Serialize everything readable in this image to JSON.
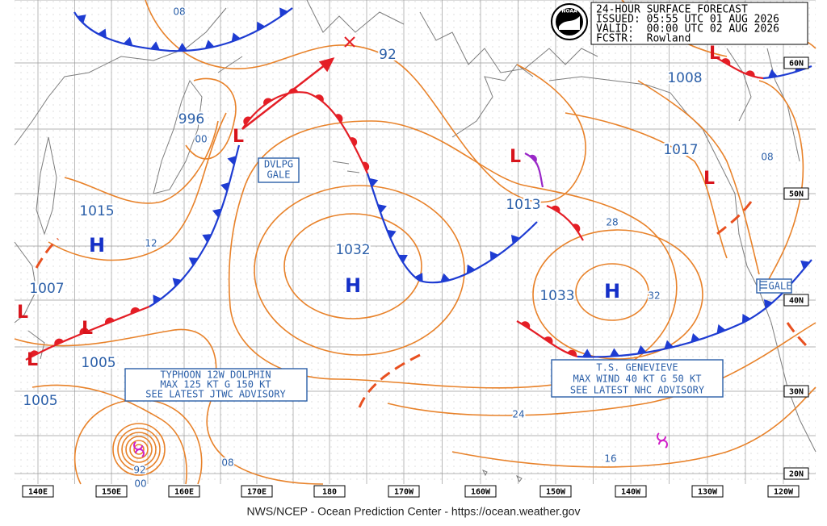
{
  "header": {
    "lines": [
      "24-HOUR SURFACE FORECAST",
      "ISSUED: 05:55 UTC 01 AUG 2026",
      "VALID:  00:00 UTC 02 AUG 2026",
      "FCSTR:  Rowland"
    ],
    "logo": "NOAA"
  },
  "pressure_labels": [
    "08",
    "92",
    "996",
    "00",
    "1008",
    "1017",
    "08",
    "1015",
    "12",
    "1032",
    "1013",
    "28",
    "1007",
    "1033",
    "32",
    "1005",
    "1005",
    "24",
    "92",
    "00",
    "08",
    "16"
  ],
  "symbols": {
    "high": "H",
    "low": "L"
  },
  "advisories": {
    "developing_gale": [
      "DVLPG",
      "GALE"
    ],
    "typhoon": [
      "TYPHOON 12W DOLPHIN",
      "MAX 125 KT G 150 KT",
      "SEE LATEST JTWC ADVISORY"
    ],
    "tropical_storm": [
      "T.S. GENEVIEVE",
      "MAX WIND 40 KT G 50 KT",
      "SEE LATEST NHC ADVISORY"
    ],
    "gale": "GALE"
  },
  "latitudes": [
    "60N",
    "50N",
    "40N",
    "30N",
    "20N"
  ],
  "longitudes": [
    "140E",
    "150E",
    "160E",
    "170E",
    "180",
    "170W",
    "160W",
    "150W",
    "140W",
    "130W",
    "120W"
  ],
  "footer": "NWS/NCEP - Ocean Prediction Center - https://ocean.weather.gov"
}
